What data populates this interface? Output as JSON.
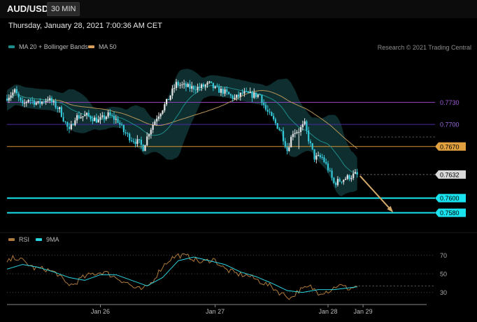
{
  "header": {
    "pair": "AUD/USD",
    "timeframe": "30 MIN"
  },
  "timestamp": "Thursday, January 28, 2021 7:00:36 AM CET",
  "legend": {
    "main": [
      {
        "label": "MA 20 + Bollinger Bands",
        "color": "#1f8c8c"
      },
      {
        "label": "MA 50",
        "color": "#d9a05b"
      }
    ],
    "copyright": "Research © 2021 Trading Central",
    "rsi": [
      {
        "label": "RSI",
        "color": "#b07a3a"
      },
      {
        "label": "9MA",
        "color": "#2ad4e0"
      }
    ]
  },
  "colors": {
    "up": "#e6e6e6",
    "down": "#35c8d8",
    "band": "#0f3334",
    "ma20": "#1f8c8c",
    "ma50": "#b8955a",
    "arrow": "#d4a86a"
  },
  "chart_data": [
    {
      "type": "candlestick",
      "x_range": [
        0,
        220
      ],
      "ylim": [
        0.7555,
        0.7795
      ],
      "x_ticks": [
        {
          "x": 48,
          "label": "Jan 26"
        },
        {
          "x": 107,
          "label": "Jan 27"
        },
        {
          "x": 165,
          "label": "Jan 28"
        },
        {
          "x": 183,
          "label": "Jan 29"
        }
      ],
      "levels": [
        {
          "value": 0.773,
          "label": "0.7730",
          "color": "#8a3fb8",
          "line_color": "#8a3fb8",
          "text_color": "#a05ad8",
          "style": "text"
        },
        {
          "value": 0.77,
          "label": "0.7700",
          "color": "#4a2aa0",
          "line_color": "#4a2aa0",
          "text_color": "#9a6ae0",
          "style": "text"
        },
        {
          "value": 0.767,
          "label": "0.7670",
          "color": "#e0a040",
          "line_color": "#d8922e",
          "text_color": "#000",
          "style": "tag"
        },
        {
          "value": 0.7632,
          "label": "0.7632",
          "color": "#d8d8d8",
          "line_color": "#777",
          "text_color": "#000",
          "style": "tag-dotted"
        },
        {
          "value": 0.76,
          "label": "0.7600",
          "color": "#19e3ee",
          "line_color": "#19e3ee",
          "text_color": "#000",
          "style": "tag"
        },
        {
          "value": 0.758,
          "label": "0.7580",
          "color": "#19e3ee",
          "line_color": "#19e3ee",
          "text_color": "#000",
          "style": "tag"
        }
      ],
      "projection_arrow": {
        "from": [
          180,
          0.7632
        ],
        "to": [
          198,
          0.7582
        ]
      },
      "keypoints": [
        [
          0,
          0.7735
        ],
        [
          5,
          0.7745
        ],
        [
          9,
          0.7725
        ],
        [
          12,
          0.7735
        ],
        [
          17,
          0.7728
        ],
        [
          22,
          0.7735
        ],
        [
          28,
          0.772
        ],
        [
          33,
          0.769
        ],
        [
          36,
          0.771
        ],
        [
          42,
          0.7712
        ],
        [
          48,
          0.7705
        ],
        [
          53,
          0.7713
        ],
        [
          58,
          0.7705
        ],
        [
          61,
          0.769
        ],
        [
          65,
          0.768
        ],
        [
          69,
          0.7675
        ],
        [
          71,
          0.7668
        ],
        [
          74,
          0.769
        ],
        [
          78,
          0.771
        ],
        [
          83,
          0.773
        ],
        [
          88,
          0.7755
        ],
        [
          95,
          0.775
        ],
        [
          100,
          0.775
        ],
        [
          105,
          0.7755
        ],
        [
          108,
          0.7748
        ],
        [
          112,
          0.7745
        ],
        [
          118,
          0.7735
        ],
        [
          122,
          0.7742
        ],
        [
          127,
          0.774
        ],
        [
          131,
          0.774
        ],
        [
          134,
          0.772
        ],
        [
          138,
          0.7705
        ],
        [
          142,
          0.769
        ],
        [
          145,
          0.7665
        ],
        [
          148,
          0.769
        ],
        [
          151,
          0.7692
        ],
        [
          154,
          0.77
        ],
        [
          156,
          0.768
        ],
        [
          159,
          0.7655
        ],
        [
          163,
          0.7655
        ],
        [
          166,
          0.764
        ],
        [
          169,
          0.762
        ],
        [
          173,
          0.7625
        ],
        [
          176,
          0.7628
        ],
        [
          180,
          0.7632
        ]
      ]
    },
    {
      "type": "line",
      "title": "RSI",
      "series_names": [
        "RSI",
        "9MA"
      ],
      "y_ticks": [
        70,
        50,
        30
      ],
      "ylim": [
        20,
        80
      ],
      "rsi_keypoints": [
        [
          0,
          62
        ],
        [
          4,
          68
        ],
        [
          8,
          64
        ],
        [
          14,
          56
        ],
        [
          20,
          55
        ],
        [
          26,
          50
        ],
        [
          30,
          40
        ],
        [
          34,
          38
        ],
        [
          38,
          45
        ],
        [
          44,
          50
        ],
        [
          50,
          52
        ],
        [
          56,
          46
        ],
        [
          62,
          40
        ],
        [
          66,
          34
        ],
        [
          70,
          33
        ],
        [
          74,
          40
        ],
        [
          80,
          58
        ],
        [
          84,
          66
        ],
        [
          88,
          70
        ],
        [
          94,
          68
        ],
        [
          100,
          62
        ],
        [
          106,
          66
        ],
        [
          112,
          55
        ],
        [
          118,
          50
        ],
        [
          124,
          48
        ],
        [
          130,
          42
        ],
        [
          136,
          36
        ],
        [
          140,
          30
        ],
        [
          146,
          24
        ],
        [
          150,
          32
        ],
        [
          156,
          36
        ],
        [
          160,
          30
        ],
        [
          166,
          32
        ],
        [
          170,
          38
        ],
        [
          176,
          34
        ],
        [
          180,
          37
        ]
      ],
      "ma_keypoints": [
        [
          0,
          55
        ],
        [
          8,
          60
        ],
        [
          16,
          57
        ],
        [
          24,
          52
        ],
        [
          32,
          46
        ],
        [
          40,
          43
        ],
        [
          48,
          49
        ],
        [
          56,
          49
        ],
        [
          64,
          43
        ],
        [
          72,
          37
        ],
        [
          80,
          46
        ],
        [
          88,
          64
        ],
        [
          96,
          68
        ],
        [
          104,
          64
        ],
        [
          112,
          60
        ],
        [
          120,
          52
        ],
        [
          128,
          47
        ],
        [
          136,
          40
        ],
        [
          144,
          32
        ],
        [
          152,
          30
        ],
        [
          160,
          33
        ],
        [
          168,
          33
        ],
        [
          176,
          35
        ],
        [
          180,
          36
        ]
      ]
    }
  ]
}
